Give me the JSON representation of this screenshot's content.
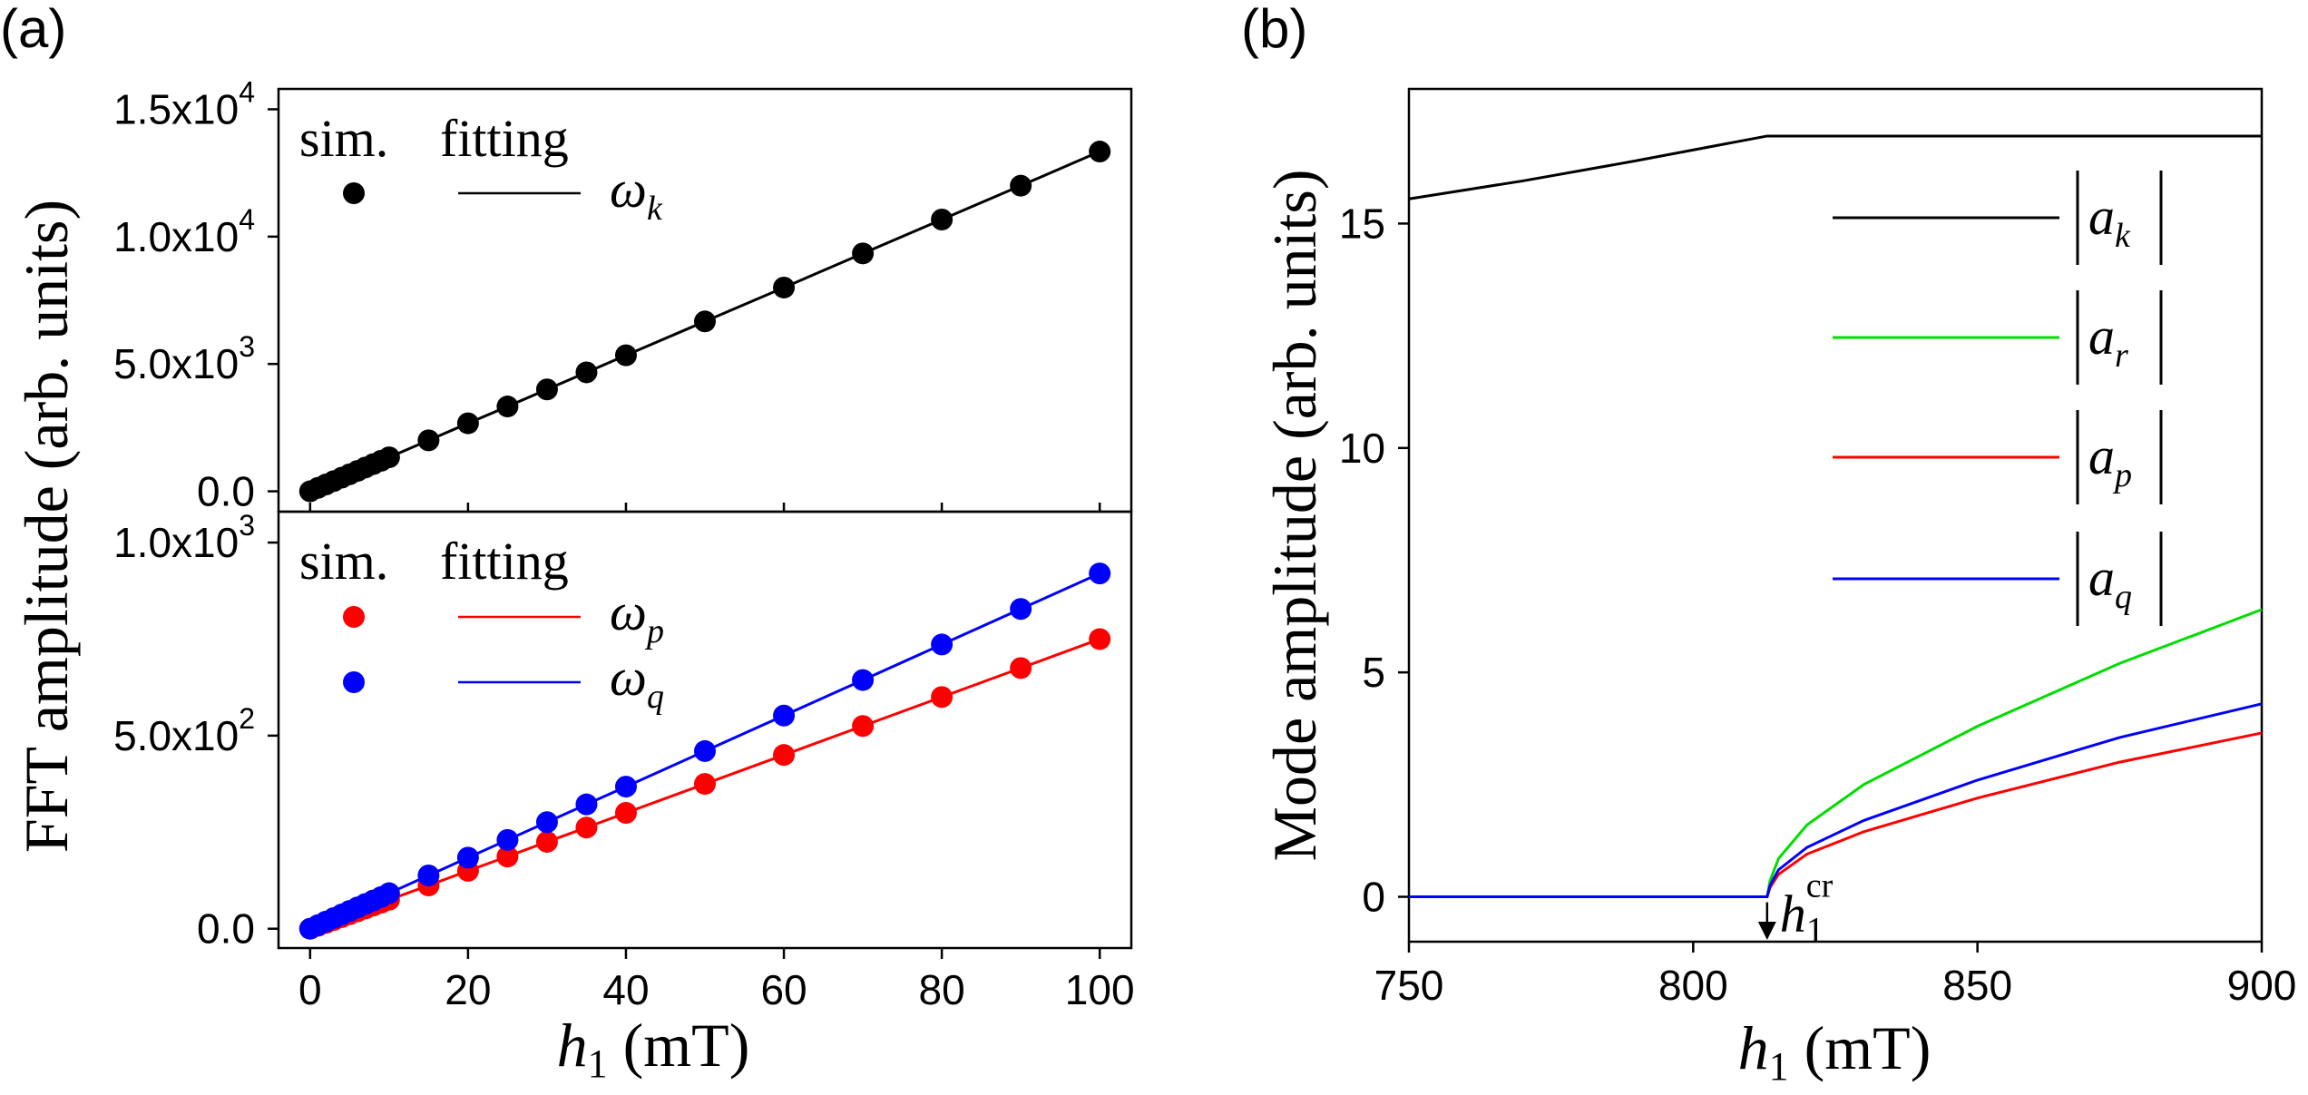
{
  "panels": {
    "a": "(a)",
    "b": "(b)"
  },
  "chart_data": [
    {
      "panel": "(a) top",
      "type": "scatter",
      "ylabel": "FFT amplitude (arb. units)",
      "xlim": [
        -4,
        104
      ],
      "ylim": [
        -800,
        15800
      ],
      "yticks": [
        {
          "value": 0,
          "label": "0.0",
          "exp": ""
        },
        {
          "value": 5000,
          "label": "5.0x10",
          "exp": "3"
        },
        {
          "value": 10000,
          "label": "1.0x10",
          "exp": "4"
        },
        {
          "value": 15000,
          "label": "1.5x10",
          "exp": "4"
        }
      ],
      "legend_header": {
        "sim": "sim.",
        "fit": "fitting"
      },
      "series": [
        {
          "name": "ω",
          "sub": "k",
          "color": "#000000",
          "x": [
            0,
            1,
            2,
            3,
            4,
            5,
            6,
            7,
            8,
            9,
            10,
            15,
            20,
            25,
            30,
            35,
            40,
            50,
            60,
            70,
            80,
            90,
            100
          ],
          "y": [
            0,
            133,
            267,
            400,
            534,
            667,
            800,
            934,
            1067,
            1200,
            1334,
            2000,
            2670,
            3330,
            4000,
            4670,
            5340,
            6670,
            8000,
            9340,
            10670,
            12000,
            13340
          ]
        }
      ]
    },
    {
      "panel": "(a) bottom",
      "type": "scatter",
      "xlabel": "h1 (mT)",
      "xlim": [
        -4,
        104
      ],
      "ylim": [
        -50,
        1080
      ],
      "xticks": [
        0,
        20,
        40,
        60,
        80,
        100
      ],
      "yticks": [
        {
          "value": 0,
          "label": "0.0",
          "exp": ""
        },
        {
          "value": 500,
          "label": "5.0x10",
          "exp": "2"
        },
        {
          "value": 1000,
          "label": "1.0x10",
          "exp": "3"
        }
      ],
      "legend_header": {
        "sim": "sim.",
        "fit": "fitting"
      },
      "series": [
        {
          "name": "ω",
          "sub": "p",
          "color": "#ff0000",
          "x": [
            0,
            1,
            2,
            3,
            4,
            5,
            6,
            7,
            8,
            9,
            10,
            15,
            20,
            25,
            30,
            35,
            40,
            50,
            60,
            70,
            80,
            90,
            100
          ],
          "y": [
            0,
            7.5,
            15,
            22.5,
            30,
            37.5,
            45,
            52.5,
            60,
            67.5,
            75,
            112,
            150,
            187,
            225,
            262,
            300,
            375,
            450,
            525,
            600,
            675,
            750
          ]
        },
        {
          "name": "ω",
          "sub": "q",
          "color": "#0000ff",
          "x": [
            0,
            1,
            2,
            3,
            4,
            5,
            6,
            7,
            8,
            9,
            10,
            15,
            20,
            25,
            30,
            35,
            40,
            50,
            60,
            70,
            80,
            90,
            100
          ],
          "y": [
            0,
            9.2,
            18.4,
            27.6,
            36.8,
            46,
            55,
            64,
            73,
            82,
            92,
            138,
            184,
            230,
            276,
            322,
            368,
            460,
            552,
            644,
            736,
            828,
            920
          ]
        }
      ]
    },
    {
      "panel": "(b)",
      "type": "line",
      "xlabel": "h1 (mT)",
      "ylabel": "Mode amplitude (arb. units)",
      "xlim": [
        750,
        900
      ],
      "ylim": [
        -1,
        18
      ],
      "xticks": [
        750,
        800,
        850,
        900
      ],
      "yticks": [
        0,
        5,
        10,
        15
      ],
      "annotation": {
        "text": "h",
        "sub": "1",
        "sup": "cr",
        "x": 813
      },
      "series": [
        {
          "name": "a",
          "sub": "k",
          "color": "#000000",
          "x": [
            750,
            770,
            790,
            813,
            850,
            900
          ],
          "y": [
            15.55,
            15.95,
            16.4,
            16.95,
            16.95,
            16.95
          ]
        },
        {
          "name": "a",
          "sub": "r",
          "color": "#00dd00",
          "x": [
            750,
            813,
            813.5,
            815,
            820,
            830,
            850,
            875,
            900
          ],
          "y": [
            0,
            0,
            0.35,
            0.85,
            1.6,
            2.5,
            3.8,
            5.2,
            6.4
          ]
        },
        {
          "name": "a",
          "sub": "p",
          "color": "#ff0000",
          "x": [
            750,
            813,
            813.5,
            815,
            820,
            830,
            850,
            875,
            900
          ],
          "y": [
            0,
            0,
            0.2,
            0.5,
            0.95,
            1.45,
            2.2,
            3.0,
            3.65
          ]
        },
        {
          "name": "a",
          "sub": "q",
          "color": "#0000ff",
          "x": [
            750,
            813,
            813.5,
            815,
            820,
            830,
            850,
            875,
            900
          ],
          "y": [
            0,
            0,
            0.25,
            0.6,
            1.1,
            1.7,
            2.6,
            3.55,
            4.3
          ]
        }
      ]
    }
  ]
}
